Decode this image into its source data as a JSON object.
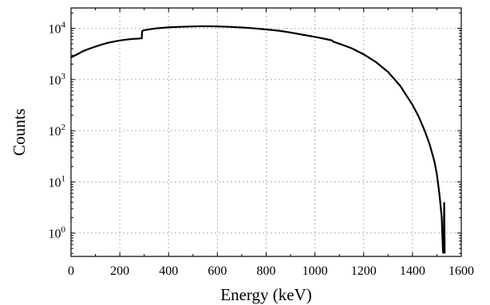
{
  "chart_data": {
    "type": "line",
    "title": "",
    "xlabel": "Energy (keV)",
    "ylabel": "Counts",
    "xlim": [
      0,
      1600
    ],
    "ylim": [
      0.35,
      25000
    ],
    "yscale": "log",
    "grid": true,
    "x_ticks": [
      0,
      200,
      400,
      600,
      800,
      1000,
      1200,
      1400,
      1600
    ],
    "x_tick_labels": [
      "0",
      "200",
      "400",
      "600",
      "800",
      "1000",
      "1200",
      "1400",
      "1600"
    ],
    "y_ticks": [
      1,
      10,
      100,
      1000,
      10000
    ],
    "y_tick_labels": [
      {
        "base": "10",
        "exp": "0"
      },
      {
        "base": "10",
        "exp": "1"
      },
      {
        "base": "10",
        "exp": "2"
      },
      {
        "base": "10",
        "exp": "3"
      },
      {
        "base": "10",
        "exp": "4"
      }
    ],
    "series": [
      {
        "color": "#000000",
        "x": [
          0,
          25,
          50,
          75,
          100,
          125,
          150,
          175,
          200,
          225,
          250,
          275,
          290,
          291,
          292,
          295,
          300,
          325,
          350,
          375,
          400,
          450,
          500,
          550,
          600,
          650,
          700,
          750,
          800,
          850,
          900,
          950,
          1000,
          1050,
          1070,
          1075,
          1100,
          1150,
          1200,
          1250,
          1300,
          1350,
          1400,
          1425,
          1450,
          1470,
          1490,
          1500,
          1510,
          1515,
          1520,
          1522,
          1525,
          1526,
          1528,
          1529,
          1530,
          1531,
          1532
        ],
        "y": [
          2700,
          3100,
          3600,
          4000,
          4400,
          4800,
          5200,
          5500,
          5800,
          6000,
          6200,
          6300,
          6400,
          8000,
          8800,
          9000,
          9200,
          9600,
          10000,
          10200,
          10500,
          10700,
          10900,
          11000,
          10900,
          10700,
          10400,
          10000,
          9500,
          9000,
          8300,
          7500,
          6800,
          6100,
          5800,
          5500,
          5000,
          4100,
          3100,
          2200,
          1400,
          750,
          320,
          190,
          100,
          55,
          25,
          14,
          6,
          3.5,
          2,
          1,
          0.45,
          0.4,
          0.6,
          1.5,
          4,
          1.2,
          0.4
        ]
      }
    ]
  }
}
